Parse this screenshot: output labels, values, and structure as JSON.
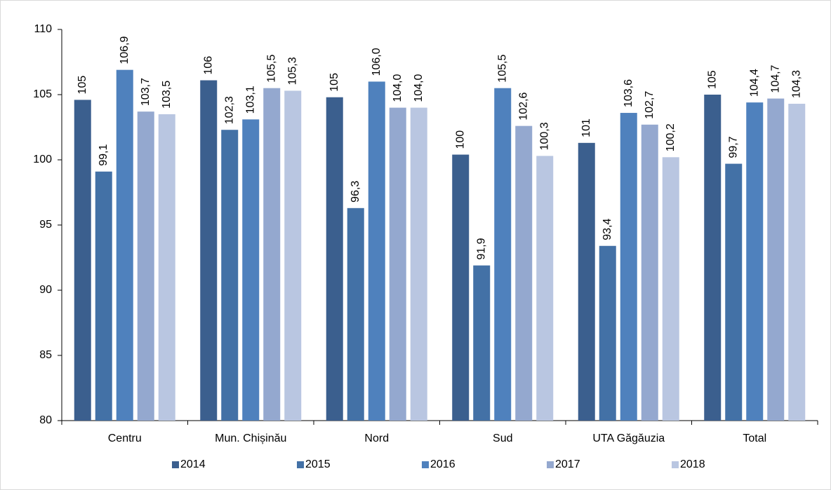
{
  "chart_data": {
    "type": "bar",
    "categories": [
      "Centru",
      "Mun. Chișinău",
      "Nord",
      "Sud",
      "UTA Găgăuzia",
      "Total"
    ],
    "series": [
      {
        "name": "2014",
        "color": "#3b5f8e",
        "values": [
          104.6,
          106.1,
          104.8,
          100.4,
          101.3,
          105.0
        ],
        "value_labels": [
          "105",
          "106",
          "105",
          "100",
          "101",
          "105"
        ]
      },
      {
        "name": "2015",
        "color": "#4371a6",
        "values": [
          99.1,
          102.3,
          96.3,
          91.9,
          93.4,
          99.7
        ],
        "value_labels": [
          "99,1",
          "102,3",
          "96,3",
          "91,9",
          "93,4",
          "99,7"
        ]
      },
      {
        "name": "2016",
        "color": "#4f81bd",
        "values": [
          106.9,
          103.1,
          106.0,
          105.5,
          103.6,
          104.4
        ],
        "value_labels": [
          "106,9",
          "103,1",
          "106,0",
          "105,5",
          "103,6",
          "104,4"
        ]
      },
      {
        "name": "2017",
        "color": "#94a8cf",
        "values": [
          103.7,
          105.5,
          104.0,
          102.6,
          102.7,
          104.7
        ],
        "value_labels": [
          "103,7",
          "105,5",
          "104,0",
          "102,6",
          "102,7",
          "104,7"
        ]
      },
      {
        "name": "2018",
        "color": "#b9c6e1",
        "values": [
          103.5,
          105.3,
          104.0,
          100.3,
          100.2,
          104.3
        ],
        "value_labels": [
          "103,5",
          "105,3",
          "104,0",
          "100,3",
          "100,2",
          "104,3"
        ]
      }
    ],
    "ylim": [
      80,
      110
    ],
    "yticks": [
      80,
      85,
      90,
      95,
      100,
      105,
      110
    ],
    "grid": false,
    "legend": "bottom"
  }
}
